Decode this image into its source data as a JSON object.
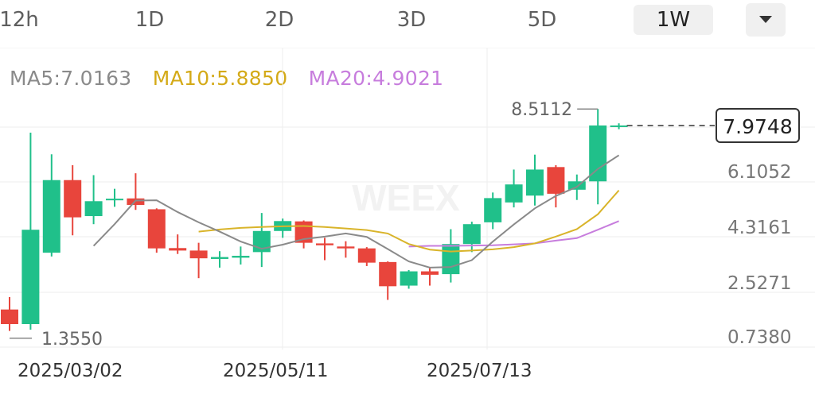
{
  "timeframes": [
    "12h",
    "1D",
    "2D",
    "3D",
    "5D",
    "1W"
  ],
  "active_timeframe": "1W",
  "indicators": {
    "ma5": "MA5:7.0163",
    "ma10": "MA10:5.8850",
    "ma20": "MA20:4.9021"
  },
  "colors": {
    "up": "#20c08a",
    "down": "#e8453c",
    "ma5": "#8a8a8a",
    "ma10": "#d9b42a",
    "ma20": "#c77ddd",
    "grid": "#eeeeee"
  },
  "watermark": "WEEX",
  "current_price": "7.9748",
  "high_label": "8.5112",
  "low_label": "1.3550",
  "chart_data": {
    "type": "candlestick",
    "y_ticks": [
      "6.1052",
      "4.3161",
      "2.5271",
      "0.7380"
    ],
    "y_tick_values": [
      6.1052,
      4.3161,
      2.5271,
      0.738
    ],
    "x_tick_labels": [
      "2025/03/02",
      "2025/05/11",
      "2025/07/13"
    ],
    "current_price": 7.9748,
    "high": 8.5112,
    "low": 1.355,
    "candles": [
      {
        "o": 2.05,
        "h": 2.45,
        "l": 1.36,
        "c": 1.58
      },
      {
        "o": 1.58,
        "h": 7.75,
        "l": 1.4,
        "c": 4.62
      },
      {
        "o": 3.88,
        "h": 7.05,
        "l": 3.76,
        "c": 6.22
      },
      {
        "o": 6.22,
        "h": 6.7,
        "l": 4.44,
        "c": 5.02
      },
      {
        "o": 5.06,
        "h": 6.38,
        "l": 4.8,
        "c": 5.54
      },
      {
        "o": 5.62,
        "h": 5.94,
        "l": 5.36,
        "c": 5.62
      },
      {
        "o": 5.63,
        "h": 6.44,
        "l": 5.26,
        "c": 5.42
      },
      {
        "o": 5.28,
        "h": 5.31,
        "l": 3.88,
        "c": 4.02
      },
      {
        "o": 4.03,
        "h": 4.47,
        "l": 3.84,
        "c": 3.95
      },
      {
        "o": 3.95,
        "h": 4.2,
        "l": 3.06,
        "c": 3.7
      },
      {
        "o": 3.68,
        "h": 3.93,
        "l": 3.4,
        "c": 3.74
      },
      {
        "o": 3.72,
        "h": 4.08,
        "l": 3.5,
        "c": 3.78
      },
      {
        "o": 3.9,
        "h": 5.16,
        "l": 3.42,
        "c": 4.58
      },
      {
        "o": 4.58,
        "h": 4.98,
        "l": 4.36,
        "c": 4.9
      },
      {
        "o": 4.89,
        "h": 4.92,
        "l": 4.02,
        "c": 4.2
      },
      {
        "o": 4.18,
        "h": 4.36,
        "l": 3.64,
        "c": 4.12
      },
      {
        "o": 4.08,
        "h": 4.25,
        "l": 3.72,
        "c": 4.02
      },
      {
        "o": 4.02,
        "h": 4.06,
        "l": 3.45,
        "c": 3.56
      },
      {
        "o": 3.58,
        "h": 3.6,
        "l": 2.36,
        "c": 2.8
      },
      {
        "o": 2.82,
        "h": 3.32,
        "l": 2.72,
        "c": 3.28
      },
      {
        "o": 3.28,
        "h": 3.38,
        "l": 2.82,
        "c": 3.17
      },
      {
        "o": 3.19,
        "h": 4.64,
        "l": 2.92,
        "c": 4.16
      },
      {
        "o": 4.16,
        "h": 4.88,
        "l": 3.9,
        "c": 4.8
      },
      {
        "o": 4.86,
        "h": 5.82,
        "l": 4.64,
        "c": 5.64
      },
      {
        "o": 5.5,
        "h": 6.56,
        "l": 5.34,
        "c": 6.08
      },
      {
        "o": 5.72,
        "h": 7.04,
        "l": 5.4,
        "c": 6.56
      },
      {
        "o": 6.64,
        "h": 6.7,
        "l": 5.34,
        "c": 5.78
      },
      {
        "o": 5.91,
        "h": 6.4,
        "l": 5.58,
        "c": 6.18
      },
      {
        "o": 6.18,
        "h": 8.51,
        "l": 5.44,
        "c": 7.98
      },
      {
        "o": 7.96,
        "h": 8.05,
        "l": 7.86,
        "c": 7.98
      }
    ],
    "ma5": [
      null,
      null,
      null,
      null,
      4.1,
      4.8,
      5.56,
      5.57,
      5.19,
      4.86,
      4.56,
      4.24,
      4.01,
      4.14,
      4.32,
      4.4,
      4.5,
      4.39,
      4.0,
      3.6,
      3.4,
      3.42,
      3.64,
      4.24,
      4.79,
      5.31,
      5.71,
      6.0,
      6.58,
      7.02
    ],
    "ma10": [
      null,
      null,
      null,
      null,
      null,
      null,
      null,
      null,
      null,
      4.56,
      4.63,
      4.68,
      4.71,
      4.73,
      4.74,
      4.71,
      4.66,
      4.61,
      4.5,
      4.16,
      3.98,
      3.92,
      3.95,
      3.99,
      4.06,
      4.18,
      4.4,
      4.64,
      5.12,
      5.89
    ],
    "ma20": [
      null,
      null,
      null,
      null,
      null,
      null,
      null,
      null,
      null,
      null,
      null,
      null,
      null,
      null,
      null,
      null,
      null,
      null,
      null,
      4.08,
      4.1,
      4.1,
      4.11,
      4.12,
      4.15,
      4.18,
      4.27,
      4.35,
      4.62,
      4.9
    ]
  }
}
